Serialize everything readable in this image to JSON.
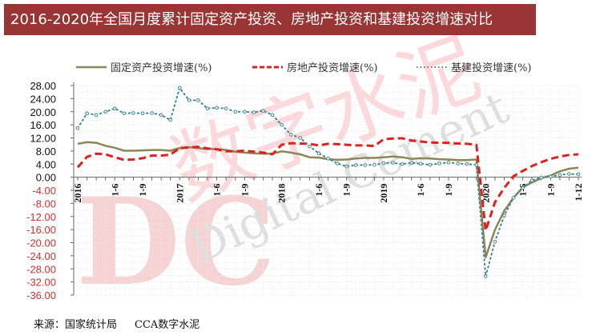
{
  "title": "2016-2020年全国月度累计固定资产投资、房地产投资和基建投资增速对比",
  "source": {
    "label": "来源：国家统计局",
    "org": "CCA数字水泥"
  },
  "watermark": {
    "cn": "数字水泥",
    "en": "Digital Cement",
    "logo": "DC"
  },
  "chart_data": {
    "type": "line",
    "ylim": [
      -36,
      28
    ],
    "yticks": [
      "28.00",
      "24.00",
      "20.00",
      "16.00",
      "12.00",
      "8.00",
      "4.00",
      "0.00",
      "-4.00",
      "-8.00",
      "-12.00",
      "-16.00",
      "-20.00",
      "-24.00",
      "-28.00",
      "-32.00",
      "-36.00"
    ],
    "x_tick_labels": [
      "2016",
      "1-6",
      "1-9",
      "2017",
      "1-6",
      "1-9",
      "2018",
      "1-6",
      "1-9",
      "2019",
      "1-6",
      "1-9",
      "2020",
      "1-6",
      "1-9",
      "1-12"
    ],
    "legend_placement": "top",
    "grid": true,
    "series": [
      {
        "name": "固定资产投资增速(%)",
        "color": "#8a8656",
        "style": "solid",
        "values": [
          10.2,
          10.7,
          10.5,
          9.6,
          9.0,
          8.1,
          8.1,
          8.2,
          8.3,
          8.3,
          8.1,
          8.9,
          9.2,
          8.9,
          8.6,
          8.6,
          8.3,
          7.8,
          7.5,
          7.3,
          7.2,
          7.2,
          7.9,
          7.5,
          7.0,
          6.1,
          6.0,
          5.5,
          5.3,
          5.4,
          5.7,
          5.9,
          5.9,
          6.1,
          6.3,
          6.1,
          5.6,
          5.8,
          5.7,
          5.5,
          5.4,
          5.2,
          5.2,
          5.4,
          -24.5,
          -16.1,
          -10.3,
          -6.3,
          -3.1,
          -1.6,
          -0.3,
          0.5,
          1.8,
          2.6,
          2.9
        ]
      },
      {
        "name": "房地产投资增速(%)",
        "color": "#e0201e",
        "style": "dashed",
        "values": [
          3.0,
          6.2,
          7.2,
          7.0,
          6.1,
          5.3,
          5.4,
          5.8,
          6.6,
          6.6,
          6.9,
          8.9,
          9.1,
          9.3,
          8.8,
          8.5,
          7.9,
          7.9,
          8.1,
          7.8,
          7.5,
          7.0,
          9.9,
          10.4,
          10.3,
          10.2,
          9.7,
          10.2,
          10.1,
          9.9,
          9.7,
          9.7,
          9.5,
          11.6,
          11.8,
          11.9,
          11.2,
          10.9,
          10.6,
          10.5,
          10.5,
          10.3,
          10.2,
          9.9,
          -16.3,
          -7.7,
          -3.3,
          0.3,
          1.9,
          3.4,
          4.6,
          5.6,
          6.3,
          6.8,
          7.0
        ]
      },
      {
        "name": "基建投资增速(%)",
        "color": "#3f8796",
        "style": "dotted",
        "values": [
          15.0,
          19.5,
          19.0,
          20.0,
          21.0,
          19.5,
          19.6,
          19.5,
          19.6,
          19.0,
          17.5,
          27.3,
          23.5,
          23.5,
          21.0,
          21.2,
          21.0,
          20.0,
          20.0,
          19.8,
          20.3,
          19.0,
          16.0,
          13.0,
          12.0,
          9.4,
          7.3,
          5.7,
          4.2,
          3.3,
          3.7,
          3.7,
          3.8,
          4.3,
          4.4,
          4.0,
          4.4,
          4.1,
          3.8,
          4.2,
          4.5,
          4.2,
          4.0,
          3.8,
          -30.3,
          -19.7,
          -11.8,
          -6.3,
          -3.3,
          -1.0,
          -0.1,
          0.2,
          0.7,
          1.0,
          0.9
        ]
      }
    ]
  }
}
